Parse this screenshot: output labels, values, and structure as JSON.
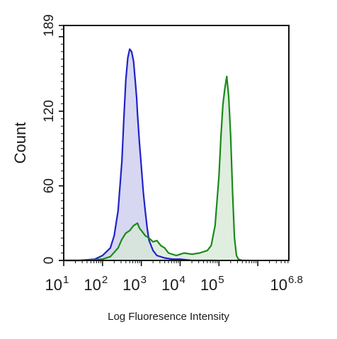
{
  "chart_data": {
    "type": "area",
    "title": "",
    "xlabel": "Log Fluoresence Intensity",
    "ylabel": "Count",
    "x_scale": "log10",
    "xlim": [
      1,
      6.8
    ],
    "ylim": [
      0,
      189
    ],
    "y_ticks": [
      {
        "value": 0,
        "label": "0"
      },
      {
        "value": 60,
        "label": "60"
      },
      {
        "value": 120,
        "label": "120"
      },
      {
        "value": 189,
        "label": "189"
      }
    ],
    "x_ticks": [
      {
        "value": 1,
        "base": "10",
        "exp": "1"
      },
      {
        "value": 2,
        "base": "10",
        "exp": "2"
      },
      {
        "value": 3,
        "base": "10",
        "exp": "3"
      },
      {
        "value": 4,
        "base": "10",
        "exp": "4"
      },
      {
        "value": 5,
        "base": "10",
        "exp": "5"
      },
      {
        "value": 6.8,
        "base": "10",
        "exp": "6.8"
      }
    ],
    "grid": false,
    "legend": "none",
    "series": [
      {
        "color": "#1f22c8",
        "fill": "#c9c9ec",
        "x": [
          1.0,
          1.4,
          1.8,
          2.0,
          2.2,
          2.3,
          2.4,
          2.5,
          2.55,
          2.6,
          2.65,
          2.7,
          2.75,
          2.8,
          2.85,
          2.88,
          2.9,
          2.95,
          3.0,
          3.05,
          3.1,
          3.15,
          3.2,
          3.3,
          3.4,
          3.6,
          3.8,
          4.0,
          4.3,
          4.6,
          4.9
        ],
        "y": [
          0,
          0,
          1,
          4,
          10,
          20,
          40,
          80,
          115,
          145,
          163,
          170,
          168,
          160,
          142,
          130,
          118,
          95,
          75,
          55,
          40,
          26,
          16,
          8,
          4,
          2,
          1,
          1,
          0,
          0,
          0
        ]
      },
      {
        "color": "#1a8a1a",
        "fill": "#d6e8d6",
        "x": [
          1.0,
          1.5,
          2.0,
          2.2,
          2.4,
          2.5,
          2.6,
          2.7,
          2.8,
          2.9,
          2.95,
          3.0,
          3.1,
          3.2,
          3.3,
          3.4,
          3.5,
          3.6,
          3.7,
          3.9,
          4.1,
          4.3,
          4.5,
          4.7,
          4.8,
          4.9,
          5.0,
          5.05,
          5.1,
          5.15,
          5.2,
          5.25,
          5.3,
          5.35,
          5.4,
          5.45,
          5.5,
          5.6,
          5.8
        ],
        "y": [
          0,
          0,
          1,
          3,
          10,
          17,
          22,
          24,
          28,
          30,
          26,
          24,
          20,
          18,
          15,
          16,
          12,
          10,
          6,
          4,
          6,
          5,
          6,
          8,
          12,
          28,
          68,
          100,
          125,
          138,
          148,
          132,
          100,
          55,
          18,
          4,
          1,
          0,
          0
        ]
      }
    ]
  }
}
